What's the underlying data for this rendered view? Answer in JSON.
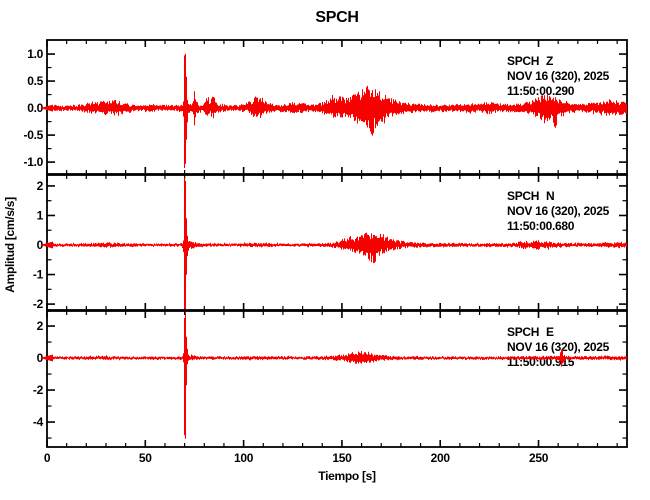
{
  "title": "SPCH",
  "colors": {
    "trace": "#f80000",
    "axis": "#000000",
    "background": "#ffffff"
  },
  "chart_data": {
    "type": "line",
    "title": "SPCH",
    "xlabel": "Tiempo [s]",
    "ylabel": "Amplitud [cm/s/s]",
    "grid": false,
    "x_range": [
      0,
      295
    ],
    "x_major_ticks": [
      0,
      50,
      100,
      150,
      200,
      250
    ],
    "x_tick_labels": [
      "0",
      "50",
      "100",
      "150",
      "200",
      "250"
    ],
    "x_minor_step": 10,
    "series": [
      {
        "station": "SPCH",
        "channel": "Z",
        "date_label": "NOV 16 (320), 2025",
        "start_label": "11:50:00.290",
        "ylim": [
          -1.22,
          1.26
        ],
        "y_major_ticks": [
          1.0,
          0.5,
          0.0,
          -0.5,
          -1.0
        ],
        "y_tick_labels": [
          "1.0",
          "0.5",
          "0.0",
          "-0.5",
          "-1.0"
        ],
        "y_minor_step": 0.25,
        "envelope_t_up_down": [
          [
            0,
            0.05,
            0.05
          ],
          [
            6,
            0.06,
            0.06
          ],
          [
            10,
            0.05,
            0.05
          ],
          [
            15,
            0.06,
            0.06
          ],
          [
            19,
            0.09,
            0.08
          ],
          [
            22,
            0.13,
            0.12
          ],
          [
            25,
            0.1,
            0.1
          ],
          [
            28,
            0.15,
            0.13
          ],
          [
            31,
            0.12,
            0.11
          ],
          [
            34,
            0.16,
            0.14
          ],
          [
            37,
            0.13,
            0.12
          ],
          [
            40,
            0.09,
            0.09
          ],
          [
            44,
            0.07,
            0.07
          ],
          [
            48,
            0.06,
            0.06
          ],
          [
            53,
            0.07,
            0.07
          ],
          [
            57,
            0.08,
            0.07
          ],
          [
            61,
            0.06,
            0.06
          ],
          [
            65,
            0.06,
            0.06
          ],
          [
            68.5,
            0.07,
            0.07
          ],
          [
            69.3,
            0.15,
            0.15
          ],
          [
            69.6,
            1.05,
            1.13
          ],
          [
            70.4,
            1.05,
            1.13
          ],
          [
            70.9,
            0.35,
            0.35
          ],
          [
            71.6,
            0.14,
            0.13
          ],
          [
            73,
            0.09,
            0.09
          ],
          [
            74.2,
            0.12,
            0.12
          ],
          [
            74.5,
            0.42,
            0.38
          ],
          [
            75.0,
            0.42,
            0.38
          ],
          [
            75.5,
            0.14,
            0.13
          ],
          [
            77,
            0.08,
            0.08
          ],
          [
            79.5,
            0.07,
            0.07
          ],
          [
            81.2,
            0.22,
            0.19
          ],
          [
            81.8,
            0.22,
            0.19
          ],
          [
            82.5,
            0.1,
            0.1
          ],
          [
            84.0,
            0.26,
            0.22
          ],
          [
            84.7,
            0.26,
            0.22
          ],
          [
            85.5,
            0.11,
            0.1
          ],
          [
            87.5,
            0.08,
            0.08
          ],
          [
            92,
            0.06,
            0.06
          ],
          [
            97,
            0.06,
            0.06
          ],
          [
            101,
            0.09,
            0.08
          ],
          [
            104,
            0.16,
            0.14
          ],
          [
            106,
            0.22,
            0.19
          ],
          [
            108,
            0.24,
            0.21
          ],
          [
            110,
            0.18,
            0.16
          ],
          [
            112,
            0.12,
            0.11
          ],
          [
            115,
            0.08,
            0.08
          ],
          [
            119,
            0.07,
            0.07
          ],
          [
            123,
            0.09,
            0.08
          ],
          [
            125,
            0.14,
            0.12
          ],
          [
            127,
            0.09,
            0.08
          ],
          [
            130,
            0.1,
            0.09
          ],
          [
            133,
            0.08,
            0.07
          ],
          [
            136,
            0.08,
            0.08
          ],
          [
            139,
            0.11,
            0.1
          ],
          [
            142,
            0.16,
            0.14
          ],
          [
            145,
            0.2,
            0.18
          ],
          [
            148,
            0.24,
            0.21
          ],
          [
            151,
            0.21,
            0.2
          ],
          [
            154,
            0.24,
            0.23
          ],
          [
            157,
            0.28,
            0.27
          ],
          [
            160,
            0.34,
            0.32
          ],
          [
            162,
            0.4,
            0.38
          ],
          [
            164,
            0.44,
            0.46
          ],
          [
            165.5,
            0.42,
            0.55
          ],
          [
            167,
            0.38,
            0.36
          ],
          [
            169,
            0.32,
            0.3
          ],
          [
            171,
            0.27,
            0.25
          ],
          [
            174,
            0.2,
            0.18
          ],
          [
            177,
            0.15,
            0.14
          ],
          [
            180,
            0.12,
            0.11
          ],
          [
            184,
            0.1,
            0.09
          ],
          [
            188,
            0.09,
            0.08
          ],
          [
            193,
            0.08,
            0.08
          ],
          [
            199,
            0.07,
            0.07
          ],
          [
            205,
            0.07,
            0.07
          ],
          [
            211,
            0.08,
            0.08
          ],
          [
            216,
            0.09,
            0.08
          ],
          [
            220,
            0.08,
            0.08
          ],
          [
            223.5,
            0.12,
            0.11
          ],
          [
            225.5,
            0.14,
            0.12
          ],
          [
            228,
            0.09,
            0.09
          ],
          [
            232,
            0.08,
            0.08
          ],
          [
            237,
            0.08,
            0.08
          ],
          [
            242,
            0.09,
            0.09
          ],
          [
            246,
            0.14,
            0.13
          ],
          [
            249,
            0.2,
            0.18
          ],
          [
            252,
            0.27,
            0.24
          ],
          [
            255,
            0.24,
            0.27
          ],
          [
            257.5,
            0.21,
            0.33
          ],
          [
            258.5,
            0.2,
            0.44
          ],
          [
            259.5,
            0.19,
            0.22
          ],
          [
            262,
            0.14,
            0.13
          ],
          [
            266,
            0.11,
            0.1
          ],
          [
            271,
            0.09,
            0.09
          ],
          [
            276,
            0.1,
            0.1
          ],
          [
            280,
            0.12,
            0.11
          ],
          [
            284,
            0.15,
            0.14
          ],
          [
            287,
            0.17,
            0.16
          ],
          [
            290,
            0.15,
            0.14
          ],
          [
            295,
            0.12,
            0.11
          ]
        ]
      },
      {
        "station": "SPCH",
        "channel": "N",
        "date_label": "NOV 16 (320), 2025",
        "start_label": "11:50:00.680",
        "ylim": [
          -2.2,
          2.37
        ],
        "y_major_ticks": [
          2,
          1,
          0,
          -1,
          -2
        ],
        "y_tick_labels": [
          "2",
          "1",
          "0",
          "-1",
          "-2"
        ],
        "y_minor_step": 0.5,
        "envelope_t_up_down": [
          [
            0,
            0.06,
            0.06
          ],
          [
            8,
            0.05,
            0.05
          ],
          [
            16,
            0.06,
            0.06
          ],
          [
            22,
            0.07,
            0.07
          ],
          [
            27,
            0.08,
            0.08
          ],
          [
            32,
            0.08,
            0.08
          ],
          [
            37,
            0.07,
            0.07
          ],
          [
            43,
            0.06,
            0.06
          ],
          [
            50,
            0.05,
            0.05
          ],
          [
            58,
            0.05,
            0.05
          ],
          [
            65,
            0.05,
            0.05
          ],
          [
            68.6,
            0.06,
            0.06
          ],
          [
            69.3,
            0.3,
            0.3
          ],
          [
            69.6,
            2.3,
            2.42
          ],
          [
            70.3,
            2.3,
            2.42
          ],
          [
            70.8,
            0.7,
            0.7
          ],
          [
            71.4,
            0.22,
            0.22
          ],
          [
            72.5,
            0.12,
            0.11
          ],
          [
            74,
            0.17,
            0.14
          ],
          [
            75.5,
            0.09,
            0.09
          ],
          [
            78,
            0.07,
            0.07
          ],
          [
            84,
            0.06,
            0.06
          ],
          [
            92,
            0.05,
            0.05
          ],
          [
            99,
            0.06,
            0.06
          ],
          [
            104,
            0.08,
            0.07
          ],
          [
            109,
            0.07,
            0.07
          ],
          [
            116,
            0.06,
            0.06
          ],
          [
            124,
            0.05,
            0.05
          ],
          [
            132,
            0.06,
            0.06
          ],
          [
            139,
            0.06,
            0.06
          ],
          [
            144,
            0.09,
            0.08
          ],
          [
            147,
            0.13,
            0.12
          ],
          [
            150,
            0.2,
            0.18
          ],
          [
            153,
            0.27,
            0.25
          ],
          [
            156,
            0.26,
            0.28
          ],
          [
            159,
            0.32,
            0.33
          ],
          [
            162,
            0.42,
            0.45
          ],
          [
            164,
            0.48,
            0.55
          ],
          [
            166,
            0.45,
            0.7
          ],
          [
            168,
            0.42,
            0.45
          ],
          [
            170,
            0.36,
            0.34
          ],
          [
            173,
            0.27,
            0.26
          ],
          [
            176,
            0.2,
            0.19
          ],
          [
            179,
            0.15,
            0.14
          ],
          [
            183,
            0.11,
            0.11
          ],
          [
            187,
            0.09,
            0.09
          ],
          [
            193,
            0.08,
            0.08
          ],
          [
            200,
            0.07,
            0.07
          ],
          [
            208,
            0.07,
            0.07
          ],
          [
            216,
            0.06,
            0.06
          ],
          [
            224,
            0.07,
            0.07
          ],
          [
            232,
            0.07,
            0.07
          ],
          [
            238,
            0.08,
            0.08
          ],
          [
            242.5,
            0.16,
            0.14
          ],
          [
            243.5,
            0.16,
            0.14
          ],
          [
            245,
            0.09,
            0.09
          ],
          [
            248.5,
            0.19,
            0.17
          ],
          [
            249.5,
            0.19,
            0.17
          ],
          [
            251,
            0.11,
            0.1
          ],
          [
            253.5,
            0.14,
            0.13
          ],
          [
            254.5,
            0.14,
            0.13
          ],
          [
            256.5,
            0.09,
            0.09
          ],
          [
            260,
            0.08,
            0.08
          ],
          [
            266,
            0.07,
            0.07
          ],
          [
            274,
            0.07,
            0.07
          ],
          [
            281,
            0.08,
            0.08
          ],
          [
            286,
            0.1,
            0.09
          ],
          [
            290,
            0.11,
            0.1
          ],
          [
            295,
            0.09,
            0.09
          ]
        ]
      },
      {
        "station": "SPCH",
        "channel": "E",
        "date_label": "NOV 16 (320), 2025",
        "start_label": "11:50:00.915",
        "ylim": [
          -5.56,
          2.94
        ],
        "y_major_ticks": [
          2,
          0,
          -2,
          -4
        ],
        "y_tick_labels": [
          "2",
          "0",
          "-2",
          "-4"
        ],
        "y_minor_step": 1,
        "envelope_t_up_down": [
          [
            0,
            0.1,
            0.1
          ],
          [
            8,
            0.1,
            0.09
          ],
          [
            16,
            0.11,
            0.1
          ],
          [
            24,
            0.12,
            0.11
          ],
          [
            30,
            0.13,
            0.12
          ],
          [
            36,
            0.11,
            0.11
          ],
          [
            44,
            0.1,
            0.1
          ],
          [
            52,
            0.1,
            0.1
          ],
          [
            60,
            0.1,
            0.1
          ],
          [
            66,
            0.1,
            0.1
          ],
          [
            68.8,
            0.12,
            0.12
          ],
          [
            69.4,
            0.5,
            0.5
          ],
          [
            69.7,
            2.9,
            5.3
          ],
          [
            70.3,
            2.9,
            5.3
          ],
          [
            70.8,
            0.9,
            0.9
          ],
          [
            71.5,
            0.3,
            0.3
          ],
          [
            72.5,
            0.16,
            0.15
          ],
          [
            74,
            0.24,
            0.2
          ],
          [
            75.5,
            0.13,
            0.12
          ],
          [
            78,
            0.11,
            0.11
          ],
          [
            85,
            0.1,
            0.1
          ],
          [
            93,
            0.1,
            0.1
          ],
          [
            100,
            0.12,
            0.11
          ],
          [
            104,
            0.14,
            0.13
          ],
          [
            108,
            0.13,
            0.12
          ],
          [
            113,
            0.11,
            0.11
          ],
          [
            120,
            0.1,
            0.1
          ],
          [
            127,
            0.11,
            0.1
          ],
          [
            134,
            0.11,
            0.11
          ],
          [
            140,
            0.12,
            0.12
          ],
          [
            145,
            0.15,
            0.14
          ],
          [
            149,
            0.19,
            0.18
          ],
          [
            153,
            0.28,
            0.26
          ],
          [
            156,
            0.38,
            0.35
          ],
          [
            158.5,
            0.44,
            0.41
          ],
          [
            161,
            0.4,
            0.38
          ],
          [
            164,
            0.33,
            0.31
          ],
          [
            167,
            0.26,
            0.24
          ],
          [
            170,
            0.21,
            0.19
          ],
          [
            174,
            0.16,
            0.15
          ],
          [
            178,
            0.13,
            0.13
          ],
          [
            183,
            0.12,
            0.11
          ],
          [
            190,
            0.11,
            0.1
          ],
          [
            198,
            0.1,
            0.1
          ],
          [
            206,
            0.1,
            0.1
          ],
          [
            214,
            0.1,
            0.1
          ],
          [
            222,
            0.1,
            0.1
          ],
          [
            230,
            0.1,
            0.1
          ],
          [
            237,
            0.11,
            0.1
          ],
          [
            244,
            0.11,
            0.11
          ],
          [
            251,
            0.12,
            0.11
          ],
          [
            257,
            0.12,
            0.12
          ],
          [
            260.5,
            0.18,
            0.18
          ],
          [
            261.2,
            0.55,
            0.6
          ],
          [
            261.9,
            0.55,
            0.6
          ],
          [
            262.6,
            0.2,
            0.2
          ],
          [
            264,
            0.13,
            0.13
          ],
          [
            268,
            0.12,
            0.11
          ],
          [
            274,
            0.12,
            0.11
          ],
          [
            280,
            0.13,
            0.12
          ],
          [
            285,
            0.14,
            0.13
          ],
          [
            289,
            0.14,
            0.13
          ],
          [
            295,
            0.11,
            0.11
          ]
        ]
      }
    ]
  }
}
